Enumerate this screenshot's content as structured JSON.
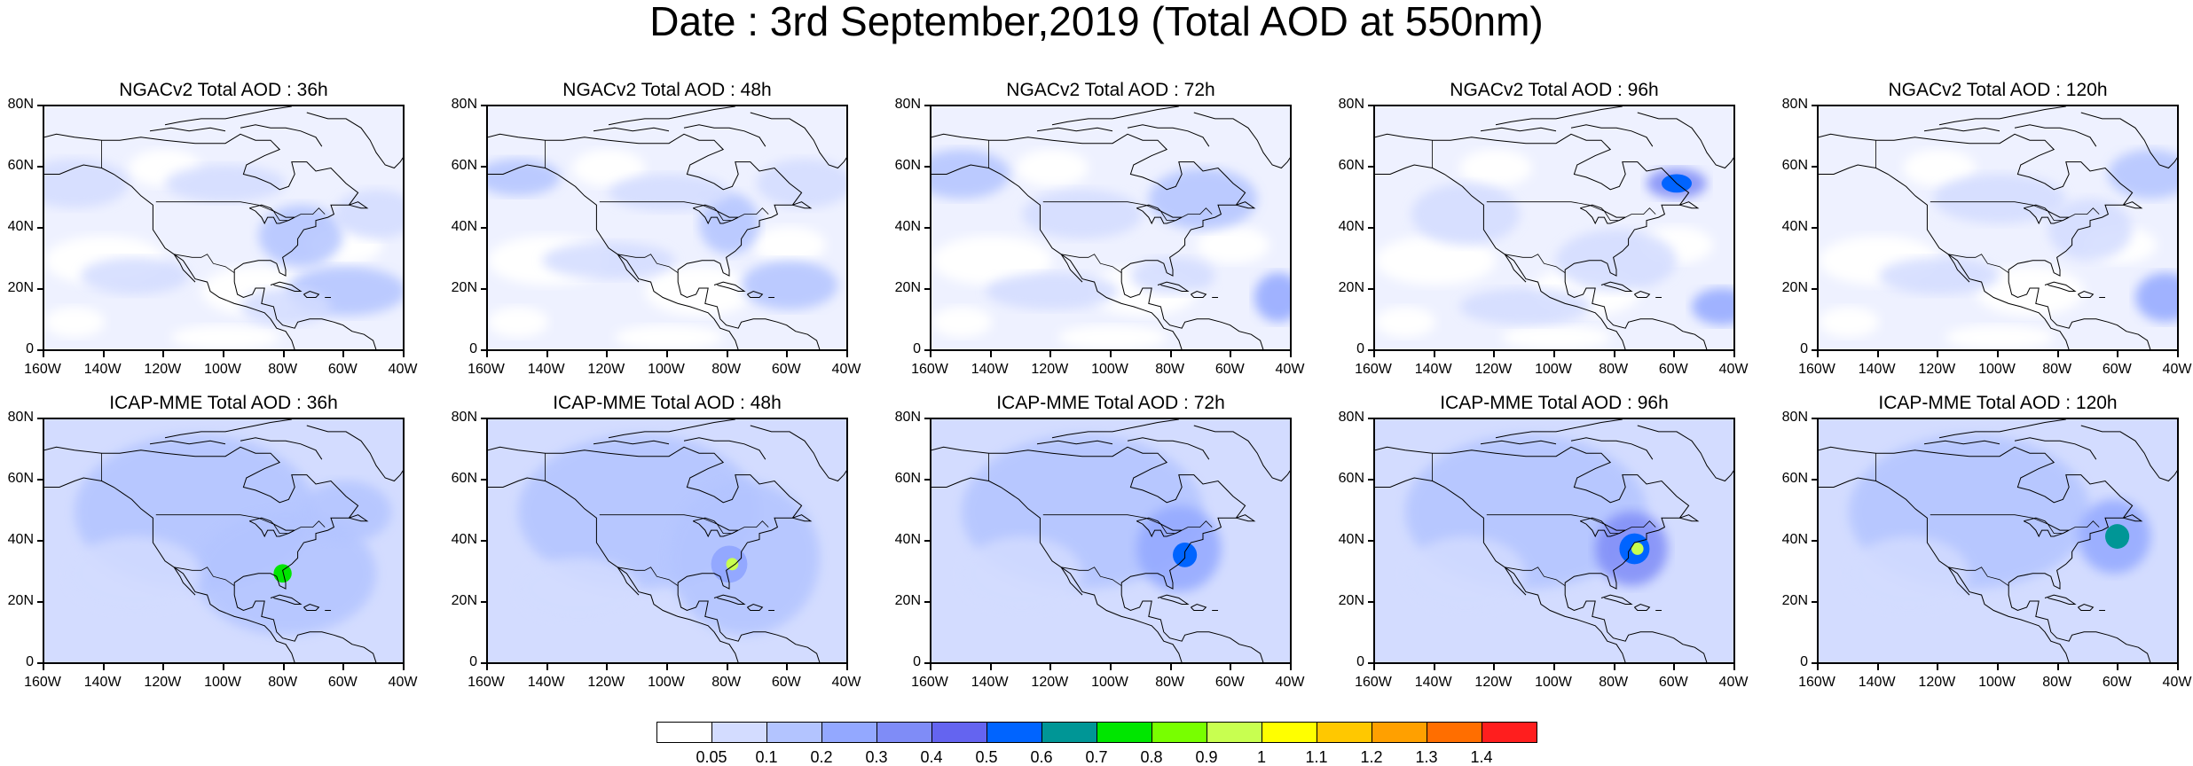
{
  "title": "Date : 3rd September,2019 (Total AOD at 550nm)",
  "lat_ticks": [
    "80N",
    "60N",
    "40N",
    "20N",
    "0"
  ],
  "lon_ticks": [
    "160W",
    "140W",
    "120W",
    "100W",
    "80W",
    "60W",
    "40W"
  ],
  "map_extent": {
    "lon_min": -160,
    "lon_max": -40,
    "lat_min": 0,
    "lat_max": 80
  },
  "panels": [
    {
      "title": "NGACv2 Total AOD : 36h",
      "model": "NGACv2",
      "lead": "36h"
    },
    {
      "title": "NGACv2 Total AOD : 48h",
      "model": "NGACv2",
      "lead": "48h"
    },
    {
      "title": "NGACv2 Total AOD : 72h",
      "model": "NGACv2",
      "lead": "72h"
    },
    {
      "title": "NGACv2 Total AOD : 96h",
      "model": "NGACv2",
      "lead": "96h"
    },
    {
      "title": "NGACv2 Total AOD : 120h",
      "model": "NGACv2",
      "lead": "120h"
    },
    {
      "title": "ICAP-MME Total AOD : 36h",
      "model": "ICAP-MME",
      "lead": "36h"
    },
    {
      "title": "ICAP-MME Total AOD : 48h",
      "model": "ICAP-MME",
      "lead": "48h"
    },
    {
      "title": "ICAP-MME Total AOD : 72h",
      "model": "ICAP-MME",
      "lead": "72h"
    },
    {
      "title": "ICAP-MME Total AOD : 96h",
      "model": "ICAP-MME",
      "lead": "96h"
    },
    {
      "title": "ICAP-MME Total AOD : 120h",
      "model": "ICAP-MME",
      "lead": "120h"
    }
  ],
  "colorbar": {
    "labels": [
      "0.05",
      "0.1",
      "0.2",
      "0.3",
      "0.4",
      "0.5",
      "0.6",
      "0.7",
      "0.8",
      "0.9",
      "1",
      "1.1",
      "1.2",
      "1.3",
      "1.4"
    ],
    "colors": [
      "#ffffff",
      "#d3dcff",
      "#b3c4ff",
      "#93a8ff",
      "#7f8cf7",
      "#6464f0",
      "#0064ff",
      "#009696",
      "#00e600",
      "#78ff00",
      "#c8ff50",
      "#ffff00",
      "#ffc800",
      "#ffa000",
      "#ff6e00",
      "#ff1e1e"
    ]
  }
}
